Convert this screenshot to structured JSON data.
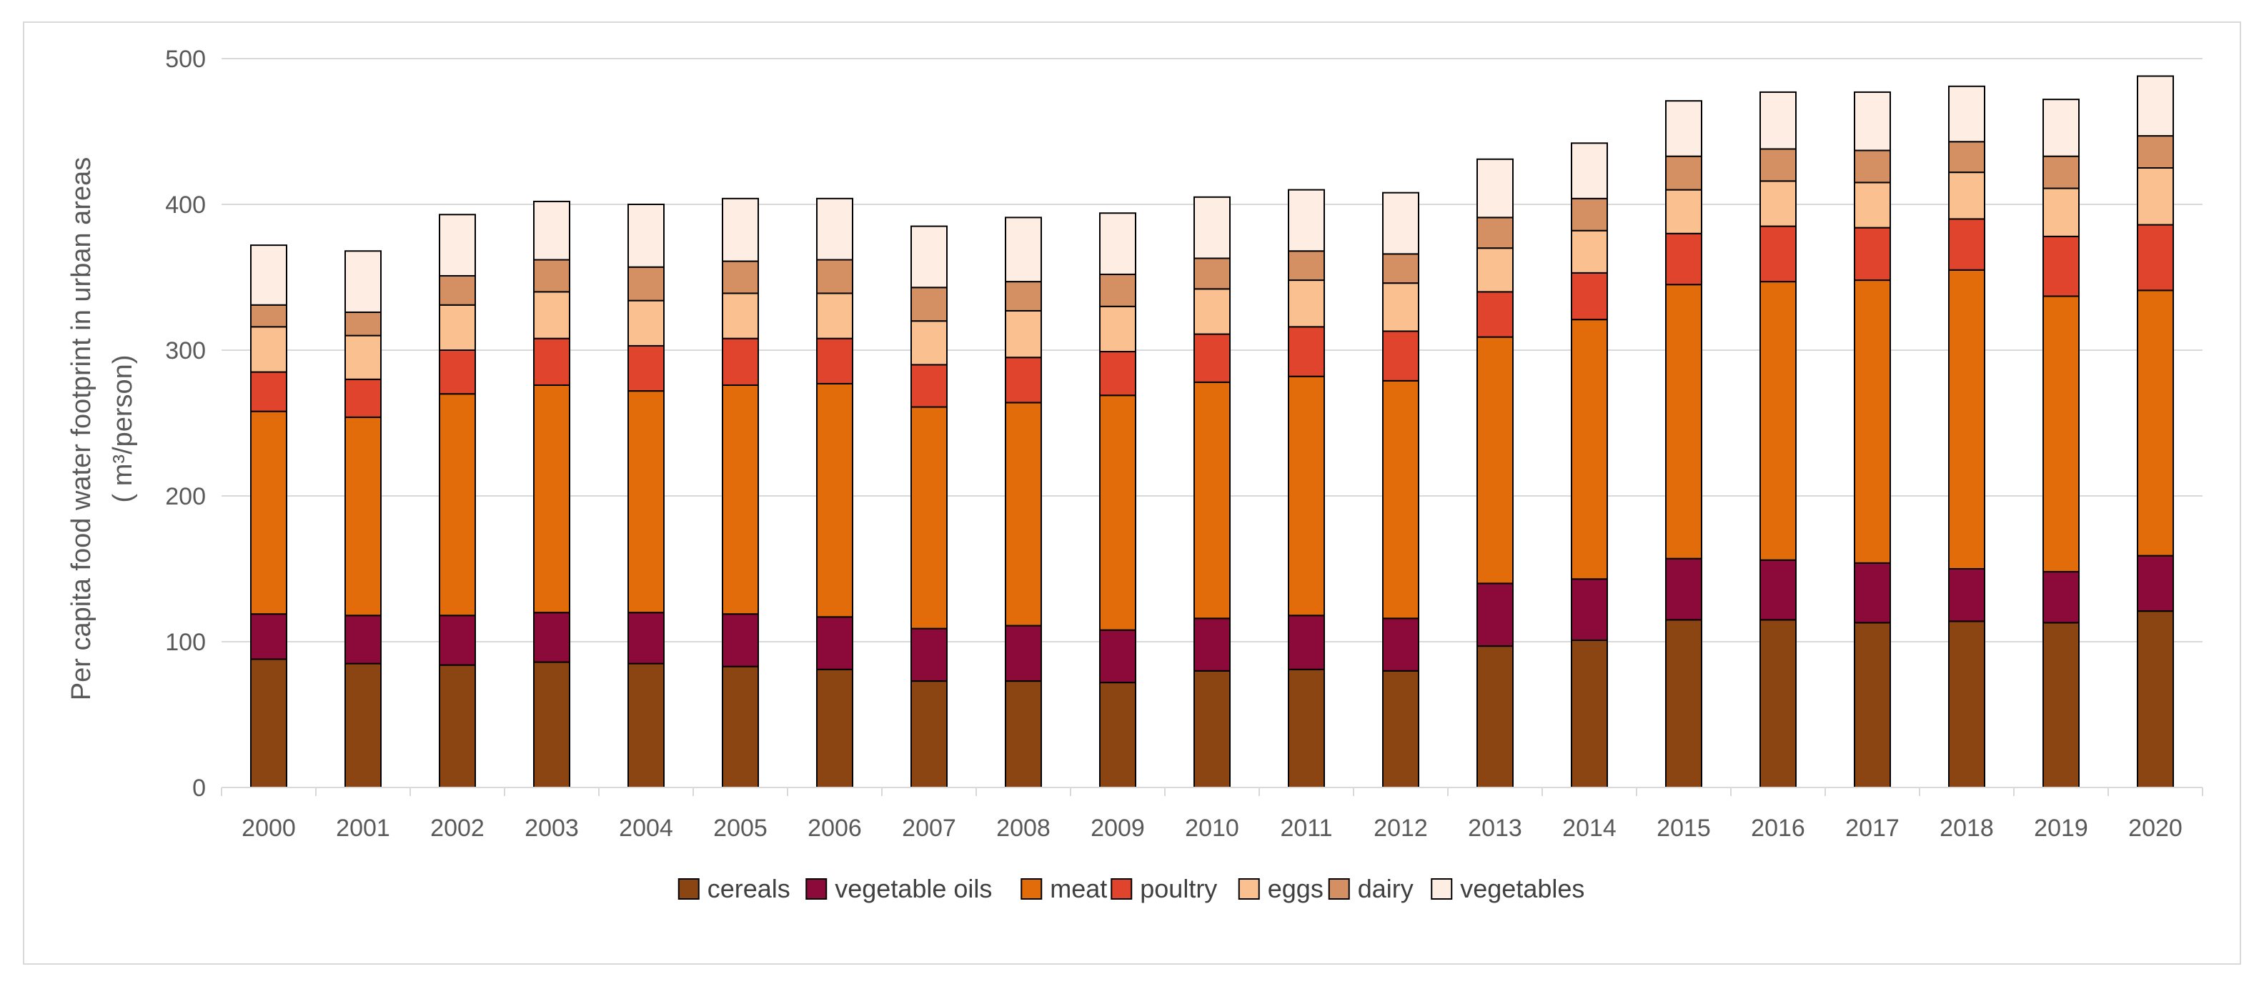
{
  "chart_data": {
    "type": "bar",
    "stacked": true,
    "title": "",
    "xlabel": "",
    "ylabel_line1": "Per capita food water footprint in urban areas",
    "ylabel_line2": "( m³/person)",
    "ylim": [
      0,
      500
    ],
    "yticks": [
      0,
      100,
      200,
      300,
      400,
      500
    ],
    "grid": true,
    "legend_position": "bottom",
    "categories": [
      "2000",
      "2001",
      "2002",
      "2003",
      "2004",
      "2005",
      "2006",
      "2007",
      "2008",
      "2009",
      "2010",
      "2011",
      "2012",
      "2013",
      "2014",
      "2015",
      "2016",
      "2017",
      "2018",
      "2019",
      "2020"
    ],
    "series": [
      {
        "name": "cereals",
        "color": "#8B4513",
        "values": [
          88,
          85,
          84,
          86,
          85,
          83,
          81,
          73,
          73,
          72,
          80,
          81,
          80,
          97,
          101,
          115,
          115,
          113,
          114,
          113,
          121
        ]
      },
      {
        "name": "vegetable oils",
        "color": "#8B0A3A",
        "values": [
          31,
          33,
          34,
          34,
          35,
          36,
          36,
          36,
          38,
          36,
          36,
          37,
          36,
          43,
          42,
          42,
          41,
          41,
          36,
          35,
          38
        ]
      },
      {
        "name": "meat",
        "color": "#E26B0A",
        "values": [
          139,
          136,
          152,
          156,
          152,
          157,
          160,
          152,
          153,
          161,
          162,
          164,
          163,
          169,
          178,
          188,
          191,
          194,
          205,
          189,
          182
        ]
      },
      {
        "name": "poultry",
        "color": "#E0442C",
        "values": [
          27,
          26,
          30,
          32,
          31,
          32,
          31,
          29,
          31,
          30,
          33,
          34,
          34,
          31,
          32,
          35,
          38,
          36,
          35,
          41,
          45
        ]
      },
      {
        "name": "eggs",
        "color": "#FAC090",
        "values": [
          31,
          30,
          31,
          32,
          31,
          31,
          31,
          30,
          32,
          31,
          31,
          32,
          33,
          30,
          29,
          30,
          31,
          31,
          32,
          33,
          39
        ]
      },
      {
        "name": "dairy",
        "color": "#D49062",
        "values": [
          15,
          16,
          20,
          22,
          23,
          22,
          23,
          23,
          20,
          22,
          21,
          20,
          20,
          21,
          22,
          23,
          22,
          22,
          21,
          22,
          22
        ]
      },
      {
        "name": "vegetables",
        "color": "#FDEDE2",
        "values": [
          41,
          42,
          42,
          40,
          43,
          43,
          42,
          42,
          44,
          42,
          42,
          42,
          42,
          40,
          38,
          38,
          39,
          40,
          38,
          39,
          41
        ]
      }
    ]
  }
}
